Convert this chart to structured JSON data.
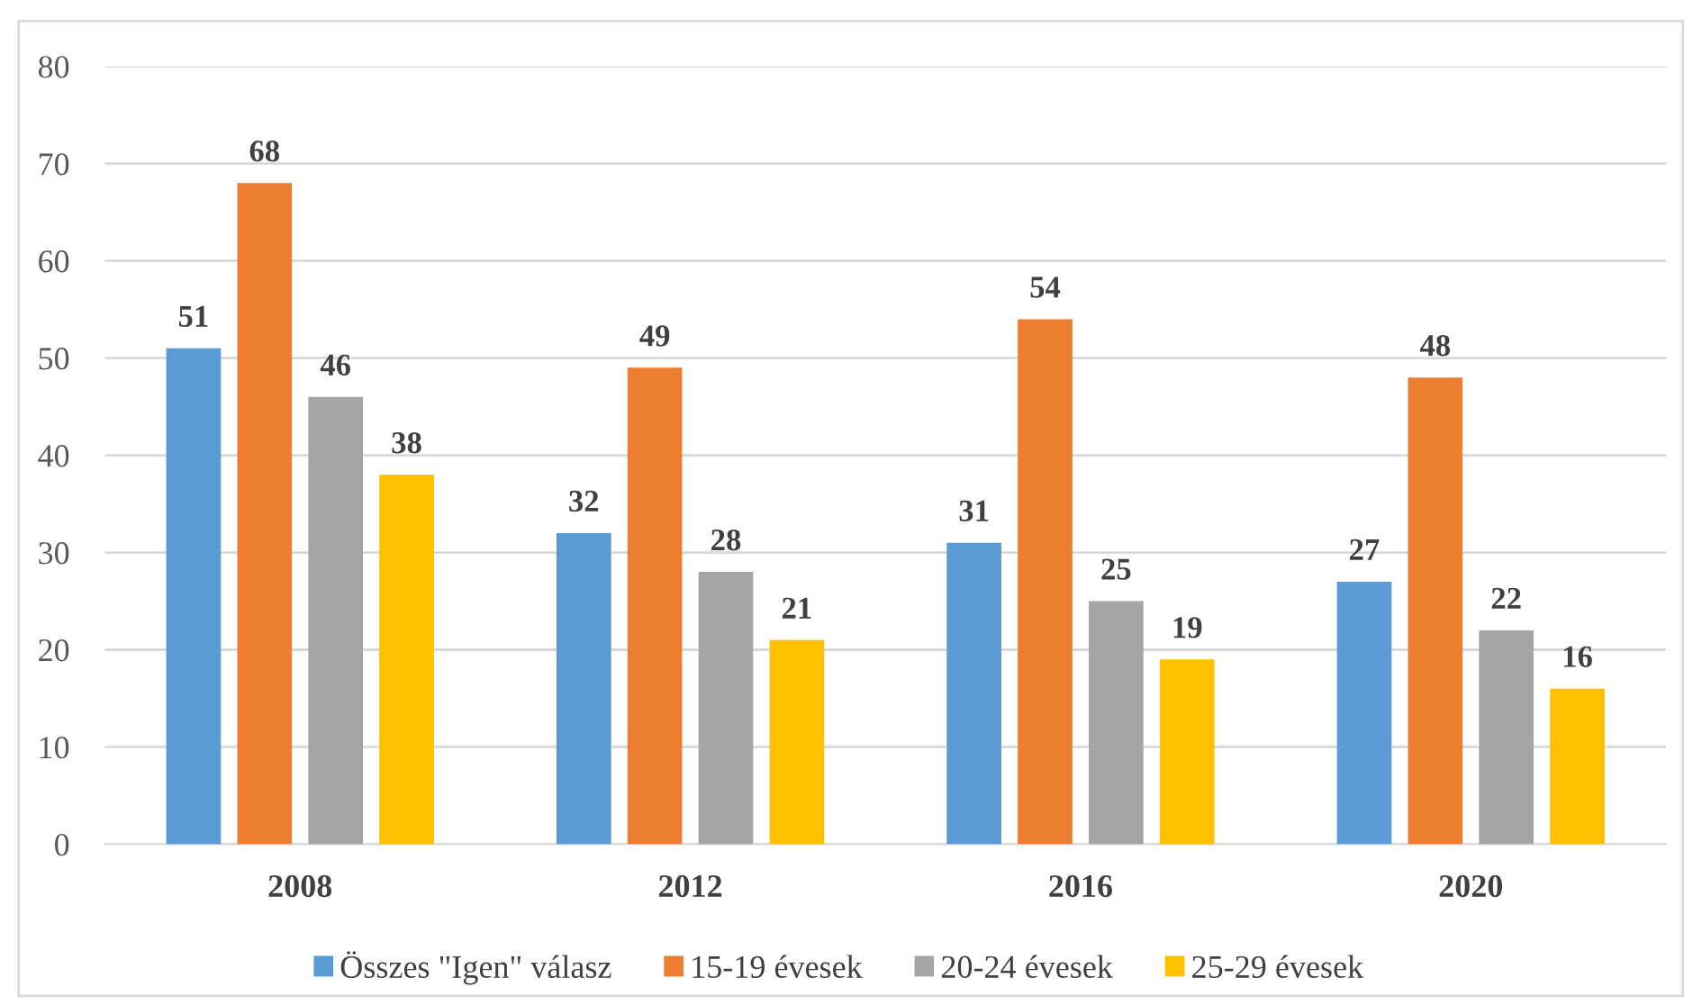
{
  "chart_data": {
    "type": "bar",
    "categories": [
      "2008",
      "2012",
      "2016",
      "2020"
    ],
    "series": [
      {
        "name": "Összes \"Igen\" válasz",
        "color": "#5b9bd5",
        "values": [
          51,
          32,
          31,
          27
        ]
      },
      {
        "name": "15-19 évesek",
        "color": "#ed7d31",
        "values": [
          68,
          49,
          54,
          48
        ]
      },
      {
        "name": "20-24 évesek",
        "color": "#a5a5a5",
        "values": [
          46,
          28,
          25,
          22
        ]
      },
      {
        "name": "25-29 évesek",
        "color": "#ffc000",
        "values": [
          38,
          21,
          19,
          16
        ]
      }
    ],
    "ylim": [
      0,
      80
    ],
    "yticks": [
      0,
      10,
      20,
      30,
      40,
      50,
      60,
      70,
      80
    ],
    "grid": "y",
    "legend": "bottom",
    "data_labels": true
  }
}
